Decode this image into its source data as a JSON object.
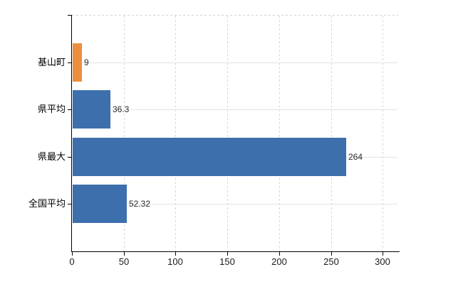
{
  "chart_data": {
    "type": "bar",
    "orientation": "horizontal",
    "title": "",
    "xlabel": "",
    "ylabel": "",
    "categories": [
      "基山町",
      "県平均",
      "県最大",
      "全国平均"
    ],
    "values": [
      9,
      36.3,
      264,
      52.32
    ],
    "value_labels": [
      "9",
      "36.3",
      "264",
      "52.32"
    ],
    "bar_colors": [
      "#ec8f3c",
      "#3d6fac",
      "#3d6fac",
      "#3d6fac"
    ],
    "x_ticks": [
      0,
      50,
      100,
      150,
      200,
      250,
      300
    ],
    "x_tick_labels": [
      "0",
      "50",
      "100",
      "150",
      "200",
      "250",
      "300"
    ],
    "xlim": [
      0,
      314
    ],
    "grid": "on",
    "legend": "none",
    "colors": {
      "highlight_bar": "#ec8f3c",
      "default_bar": "#3d6fac",
      "axis": "#000000",
      "horizontal_gridline": "#dee5de",
      "vertical_gridline": "#d7d7d7",
      "background": "#ffffff",
      "text": "#000000"
    }
  }
}
